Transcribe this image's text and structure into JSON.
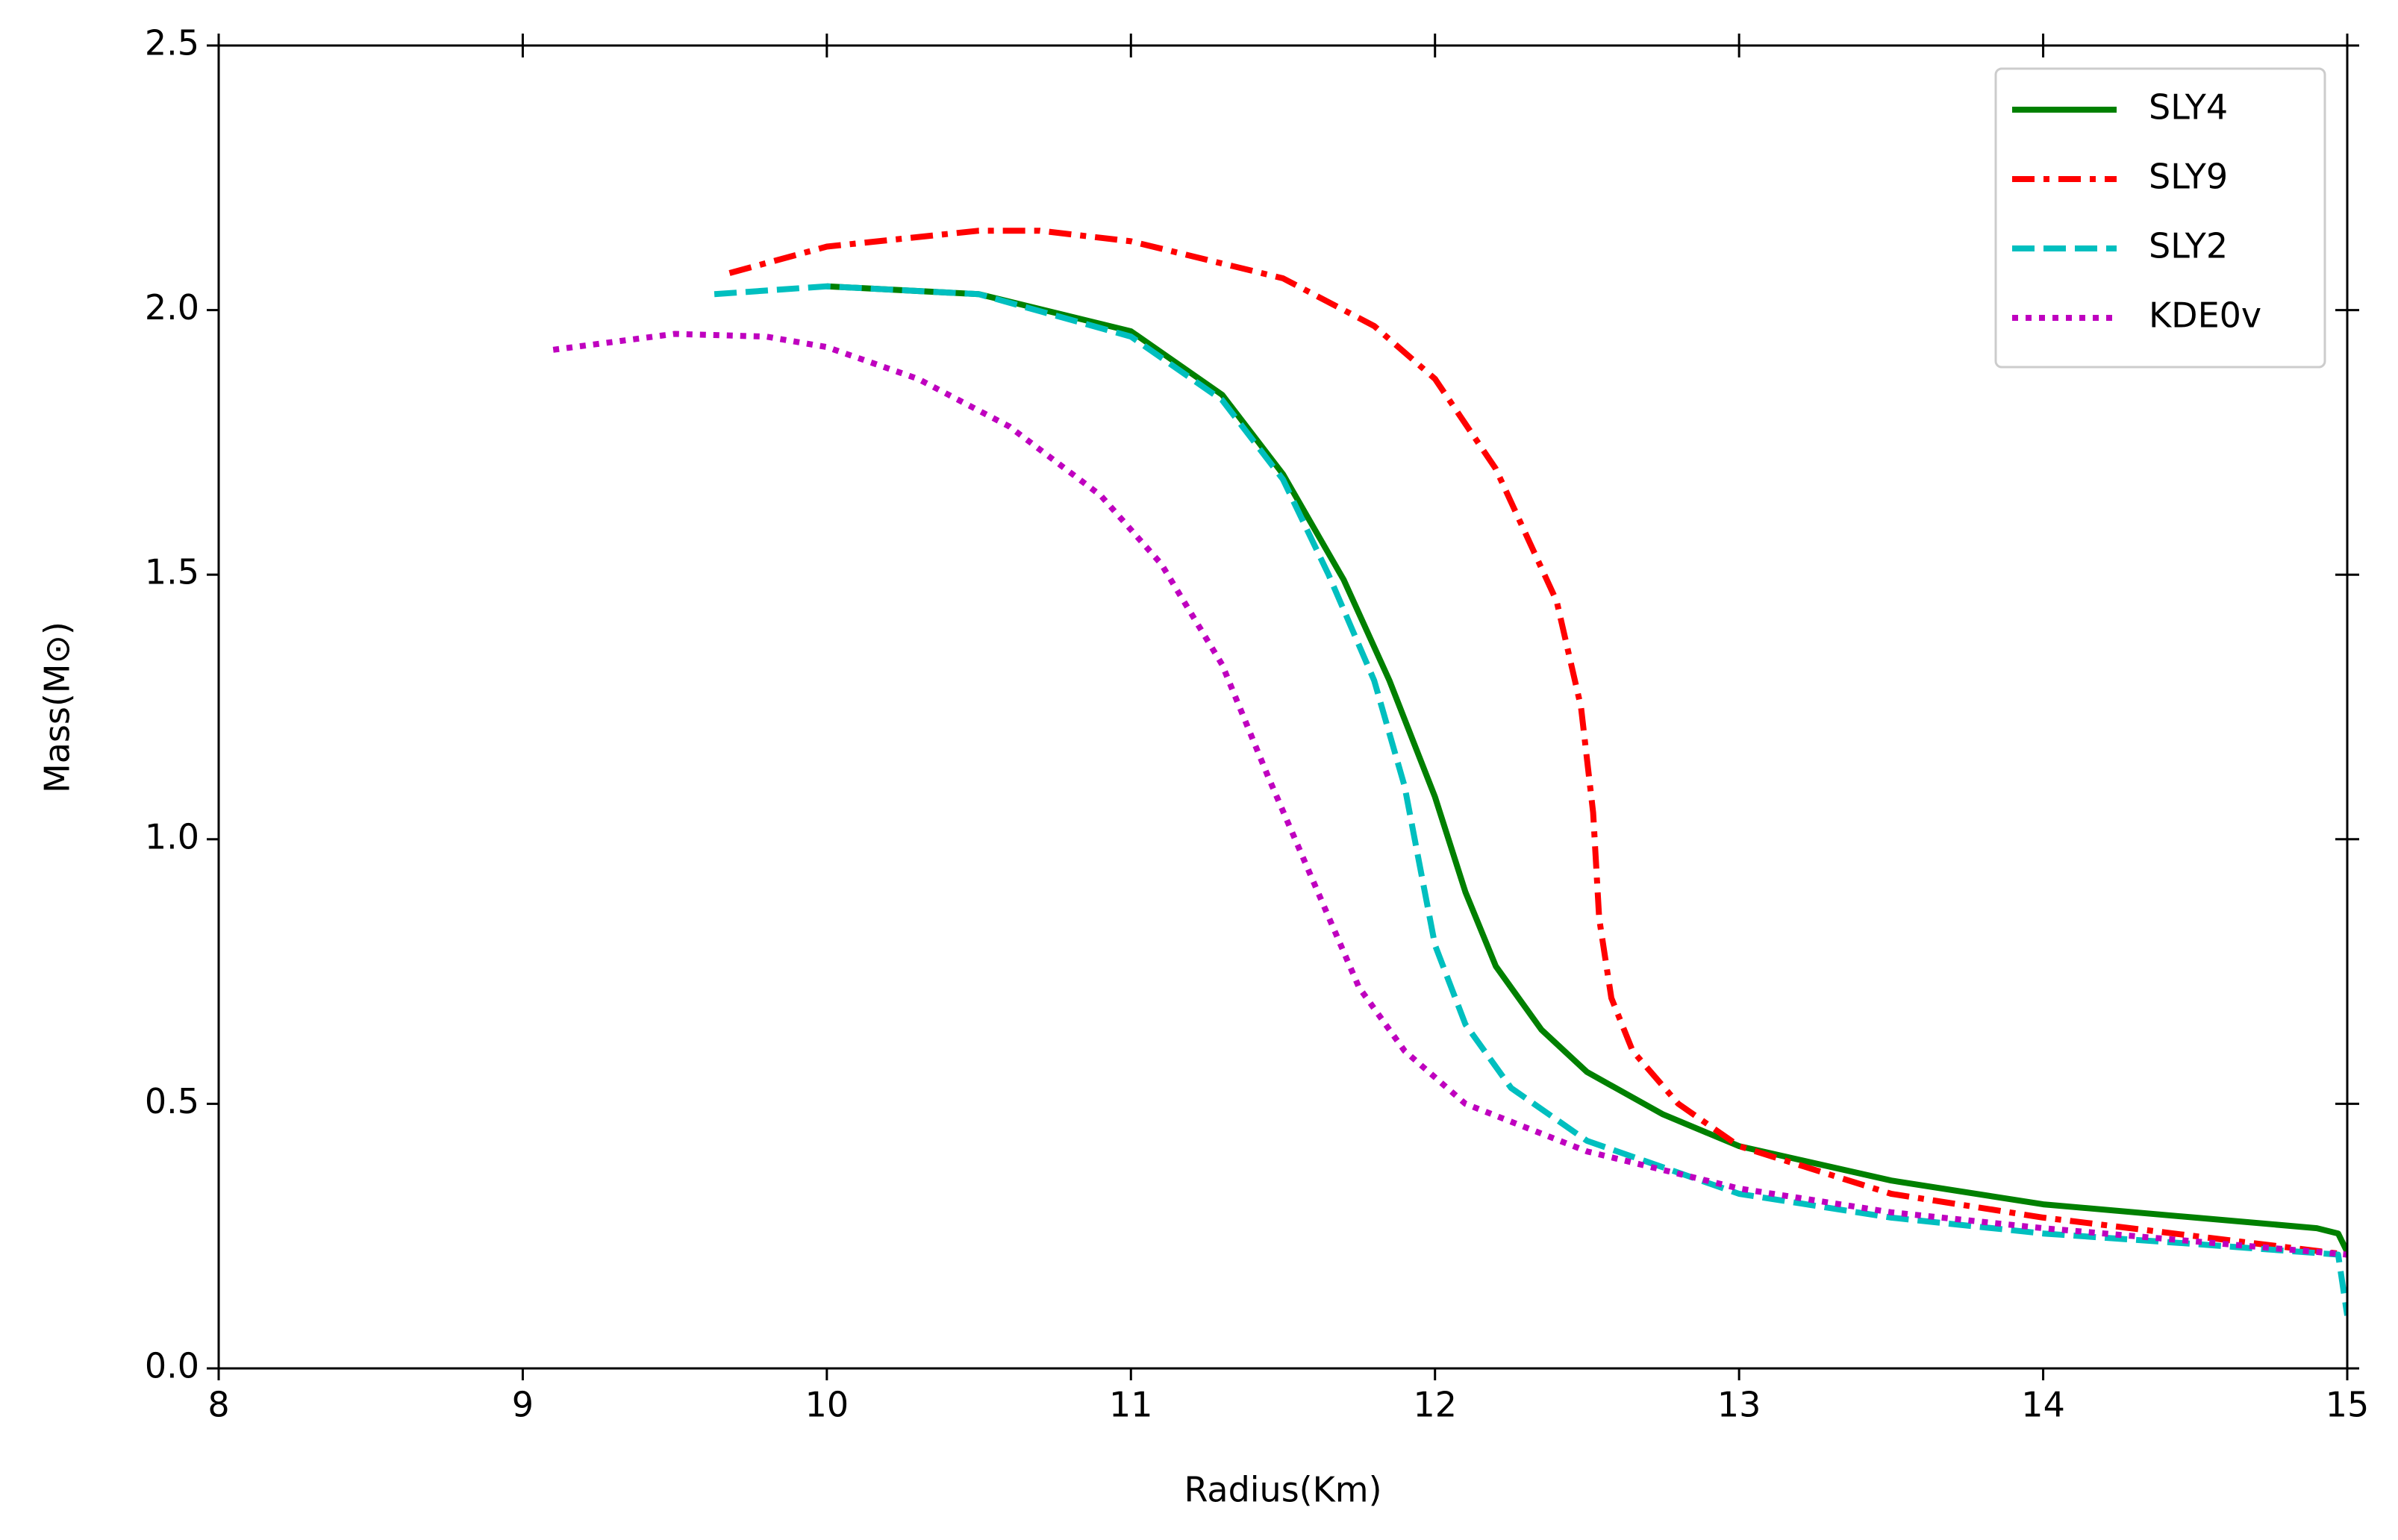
{
  "chart_data": {
    "type": "line",
    "xlabel": "Radius(Km)",
    "ylabel": "Mass(M⊙)",
    "xlim": [
      8,
      15
    ],
    "ylim": [
      0,
      2.5
    ],
    "xticks": [
      8,
      9,
      10,
      11,
      12,
      13,
      14,
      15
    ],
    "yticks": [
      {
        "value": 0,
        "label": "0.0"
      },
      {
        "value": 0.5,
        "label": "0.5"
      },
      {
        "value": 1,
        "label": "1.0"
      },
      {
        "value": 1.5,
        "label": "1.5"
      },
      {
        "value": 2,
        "label": "2.0"
      },
      {
        "value": 2.5,
        "label": "2.5"
      }
    ],
    "legend": "upper right",
    "series": [
      {
        "name": "SLY4",
        "color": "#008000",
        "linestyle": "solid",
        "x": [
          10.0,
          10.5,
          11.0,
          11.3,
          11.5,
          11.7,
          11.85,
          12.0,
          12.1,
          12.2,
          12.35,
          12.5,
          12.75,
          13.0,
          13.5,
          14.0,
          14.5,
          14.9,
          14.97,
          15.0
        ],
        "values": [
          2.045,
          2.03,
          1.96,
          1.84,
          1.69,
          1.49,
          1.3,
          1.08,
          0.9,
          0.76,
          0.64,
          0.56,
          0.48,
          0.42,
          0.355,
          0.31,
          0.285,
          0.265,
          0.255,
          0.22
        ]
      },
      {
        "name": "SLY9",
        "color": "#ff0000",
        "linestyle": "dashdot",
        "x": [
          9.68,
          10.0,
          10.5,
          10.7,
          11.0,
          11.5,
          11.8,
          12.0,
          12.2,
          12.4,
          12.48,
          12.52,
          12.54,
          12.58,
          12.65,
          12.8,
          13.0,
          13.5,
          14.0,
          14.5,
          15.0
        ],
        "values": [
          2.07,
          2.12,
          2.15,
          2.15,
          2.13,
          2.06,
          1.97,
          1.87,
          1.7,
          1.45,
          1.25,
          1.05,
          0.85,
          0.7,
          0.6,
          0.5,
          0.42,
          0.33,
          0.285,
          0.25,
          0.215
        ]
      },
      {
        "name": "SLY2",
        "color": "#00bfbf",
        "linestyle": "dashed",
        "x": [
          9.63,
          10.0,
          10.5,
          11.0,
          11.3,
          11.5,
          11.65,
          11.8,
          11.9,
          11.95,
          12.0,
          12.1,
          12.25,
          12.5,
          13.0,
          13.5,
          14.0,
          14.5,
          14.97,
          15.0
        ],
        "values": [
          2.03,
          2.045,
          2.03,
          1.95,
          1.83,
          1.68,
          1.5,
          1.3,
          1.1,
          0.95,
          0.8,
          0.65,
          0.53,
          0.43,
          0.33,
          0.285,
          0.255,
          0.235,
          0.215,
          0.1
        ]
      },
      {
        "name": "KDE0v",
        "color": "#bf00bf",
        "linestyle": "dotted",
        "x": [
          9.1,
          9.5,
          9.8,
          10.0,
          10.3,
          10.6,
          10.9,
          11.1,
          11.3,
          11.45,
          11.6,
          11.75,
          11.9,
          12.1,
          12.5,
          13.0,
          13.5,
          14.0,
          14.5,
          15.0
        ],
        "values": [
          1.925,
          1.955,
          1.95,
          1.93,
          1.87,
          1.78,
          1.65,
          1.52,
          1.33,
          1.12,
          0.92,
          0.72,
          0.6,
          0.5,
          0.41,
          0.34,
          0.295,
          0.265,
          0.24,
          0.215
        ]
      }
    ]
  }
}
